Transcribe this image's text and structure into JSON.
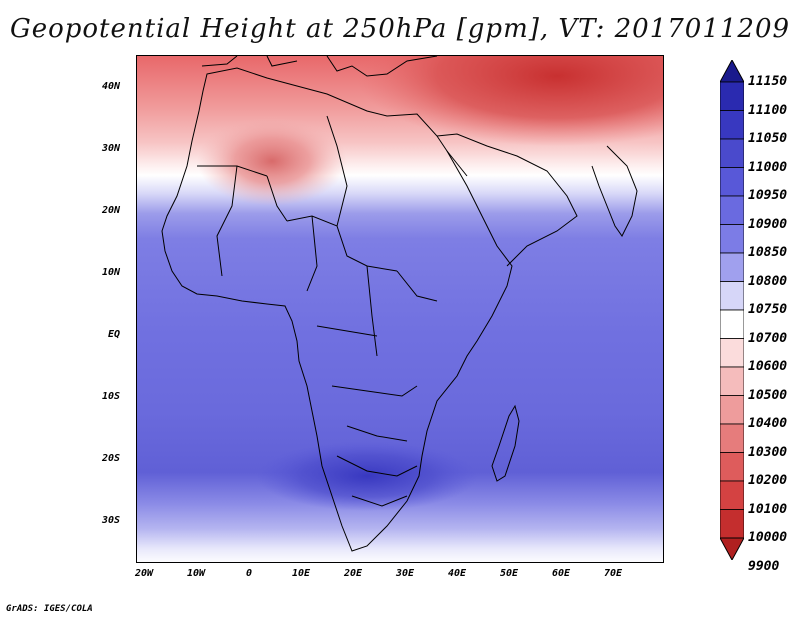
{
  "title": "Geopotential Height at 250hPa [gpm], VT: 2017011209",
  "footer": "GrADS: IGES/COLA",
  "map": {
    "variable": "Geopotential Height",
    "level": "250hPa",
    "units": "gpm",
    "valid_time": "2017011209",
    "region": "Africa",
    "lat_labels": [
      "40N",
      "30N",
      "20N",
      "10N",
      "EQ",
      "10S",
      "20S",
      "30S"
    ],
    "lon_labels": [
      "20W",
      "10W",
      "0",
      "10E",
      "20E",
      "30E",
      "40E",
      "50E",
      "60E",
      "70E"
    ]
  },
  "colorbar": {
    "levels": [
      "11150",
      "11100",
      "11050",
      "11000",
      "10950",
      "10900",
      "10850",
      "10800",
      "10750",
      "10700",
      "10600",
      "10500",
      "10400",
      "10300",
      "10200",
      "10100",
      "10000",
      "9900"
    ],
    "colors": [
      "#1a1a8c",
      "#2a2ab0",
      "#3838c0",
      "#4a4acc",
      "#5858d8",
      "#6a6ae0",
      "#7c7ce6",
      "#a0a0ee",
      "#d6d6f8",
      "#ffffff",
      "#fbdcdc",
      "#f5bcbc",
      "#ee9c9c",
      "#e67c7c",
      "#de5c5c",
      "#d44242",
      "#c42e2e",
      "#b02020"
    ]
  }
}
